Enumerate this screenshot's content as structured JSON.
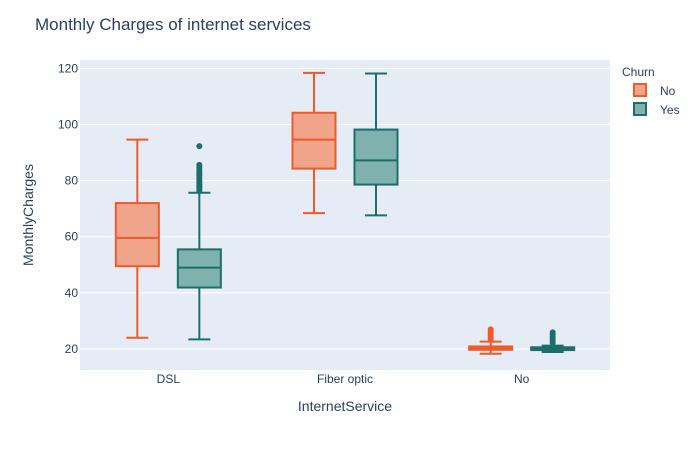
{
  "chart_data": {
    "type": "box",
    "title": "Monthly Charges of internet services",
    "xlabel": "InternetService",
    "ylabel": "MonthlyCharges",
    "categories": [
      "DSL",
      "Fiber optic",
      "No"
    ],
    "ylim": [
      12.5,
      123
    ],
    "yticks": [
      20,
      40,
      60,
      80,
      100,
      120
    ],
    "grid": true,
    "legend": {
      "title": "Churn",
      "position": "right"
    },
    "series": [
      {
        "name": "No",
        "stroke": "#f05a28",
        "fill": "#f0a58a",
        "boxes": [
          {
            "category": "DSL",
            "min": 24,
            "q1": 49.5,
            "median": 59.6,
            "q3": 72,
            "max": 94.6,
            "outliers": []
          },
          {
            "category": "Fiber optic",
            "min": 68.4,
            "q1": 84.3,
            "median": 94.6,
            "q3": 104.2,
            "max": 118.4,
            "outliers": []
          },
          {
            "category": "No",
            "min": 18.3,
            "q1": 19.7,
            "median": 20.2,
            "q3": 20.9,
            "max": 22.6,
            "outliers": [
              23.5,
              24.3,
              25,
              25.6,
              26.3,
              27
            ]
          }
        ]
      },
      {
        "name": "Yes",
        "stroke": "#1c6e6a",
        "fill": "#7fb2ae",
        "boxes": [
          {
            "category": "DSL",
            "min": 23.4,
            "q1": 41.9,
            "median": 49,
            "q3": 55.5,
            "max": 75.7,
            "outliers": [
              76.3,
              77,
              77.5,
              78,
              78.5,
              79,
              79.5,
              80.2,
              81,
              81.8,
              82.5,
              83.2,
              84,
              84.8,
              85.6,
              92.3
            ]
          }
        ],
        "extra": true
      }
    ],
    "series_yes_boxes": [
      {
        "category": "DSL",
        "min": 23.4,
        "q1": 41.9,
        "median": 49,
        "q3": 55.5,
        "max": 75.7,
        "outliers": [
          76.3,
          77,
          77.5,
          78,
          78.5,
          79,
          79.5,
          80.2,
          81,
          81.8,
          82.5,
          83.2,
          84,
          84.8,
          85.6,
          92.3
        ]
      },
      {
        "category": "Fiber optic",
        "min": 67.6,
        "q1": 78.6,
        "median": 87.2,
        "q3": 98.2,
        "max": 118.2,
        "outliers": []
      },
      {
        "category": "No",
        "min": 18.9,
        "q1": 19.6,
        "median": 20.1,
        "q3": 20.6,
        "max": 21.2,
        "outliers": [
          22.2,
          23,
          23.8,
          24.5,
          25.2,
          25.9
        ]
      }
    ]
  }
}
